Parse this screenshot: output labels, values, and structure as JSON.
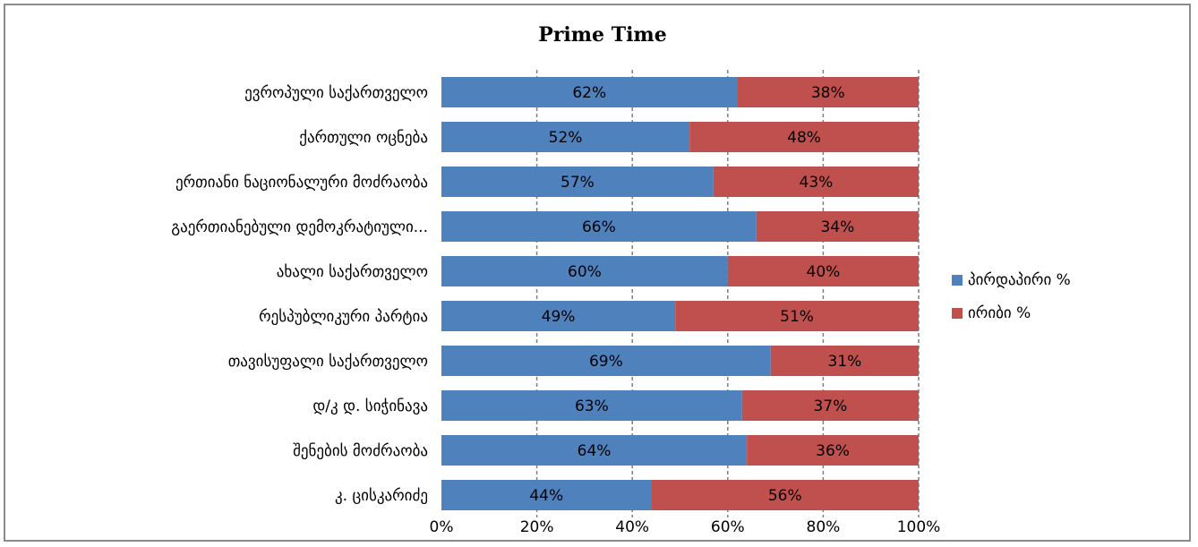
{
  "chart_data": {
    "type": "bar",
    "orientation": "horizontal",
    "stacked": "percent",
    "title": "Prime Time",
    "xlabel": "",
    "ylabel": "",
    "xlim": [
      0,
      100
    ],
    "x_ticks": [
      "0%",
      "20%",
      "40%",
      "60%",
      "80%",
      "100%"
    ],
    "grid": true,
    "legend_position": "right",
    "categories": [
      "ევროპული საქართველო",
      "ქართული ოცნება",
      "ერთიანი ნაციონალური მოძრაობა",
      "გაერთიანებული დემოკრატიული...",
      "ახალი საქართველო",
      "რესპუბლიკური პარტია",
      "თავისუფალი საქართველო",
      "დ/კ დ. სიჭინავა",
      "შენების მოძრაობა",
      "კ. ცისკარიძე"
    ],
    "series": [
      {
        "name": "პირდაპირი %",
        "color": "#4f81bd",
        "values": [
          62,
          52,
          57,
          66,
          60,
          49,
          69,
          63,
          64,
          44
        ],
        "labels": [
          "62%",
          "52%",
          "57%",
          "66%",
          "60%",
          "49%",
          "69%",
          "63%",
          "64%",
          "44%"
        ]
      },
      {
        "name": "ირიბი %",
        "color": "#c0504d",
        "values": [
          38,
          48,
          43,
          34,
          40,
          51,
          31,
          37,
          36,
          56
        ],
        "labels": [
          "38%",
          "48%",
          "43%",
          "34%",
          "40%",
          "51%",
          "31%",
          "37%",
          "36%",
          "56%"
        ]
      }
    ]
  }
}
